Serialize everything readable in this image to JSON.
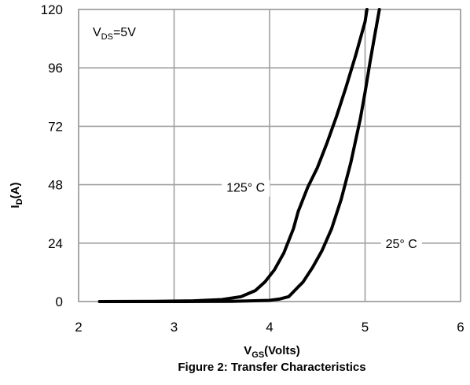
{
  "chart_data": {
    "type": "line",
    "caption": "Figure 2: Transfer Characteristics",
    "xlabel": {
      "main": "V",
      "sub": "GS",
      "rest": "(Volts)"
    },
    "ylabel": {
      "main": "I",
      "sub": "D",
      "rest": "(A)"
    },
    "condition": {
      "main": "V",
      "sub": "DS",
      "rest": "=5V"
    },
    "xlim": [
      2,
      6
    ],
    "ylim": [
      0,
      120
    ],
    "x_ticks": [
      2,
      3,
      4,
      5,
      6
    ],
    "y_ticks": [
      0,
      24,
      48,
      72,
      96,
      120
    ],
    "grid": true,
    "series": [
      {
        "name": "125° C",
        "label_at": [
          3.75,
          47
        ],
        "points": [
          [
            2.22,
            0
          ],
          [
            2.8,
            0.1
          ],
          [
            3.2,
            0.3
          ],
          [
            3.5,
            0.8
          ],
          [
            3.7,
            2
          ],
          [
            3.85,
            4.5
          ],
          [
            3.95,
            8
          ],
          [
            4.05,
            13
          ],
          [
            4.15,
            20
          ],
          [
            4.25,
            30
          ],
          [
            4.3,
            37
          ],
          [
            4.4,
            47
          ],
          [
            4.5,
            55
          ],
          [
            4.6,
            65
          ],
          [
            4.7,
            76
          ],
          [
            4.8,
            88
          ],
          [
            4.9,
            101
          ],
          [
            5.0,
            115
          ],
          [
            5.02,
            120
          ]
        ]
      },
      {
        "name": "25° C",
        "label_at": [
          5.38,
          24
        ],
        "points": [
          [
            2.22,
            0
          ],
          [
            3.1,
            0
          ],
          [
            3.6,
            0.1
          ],
          [
            4.0,
            0.5
          ],
          [
            4.1,
            1
          ],
          [
            4.2,
            2
          ],
          [
            4.25,
            4
          ],
          [
            4.3,
            6
          ],
          [
            4.35,
            8
          ],
          [
            4.45,
            14
          ],
          [
            4.55,
            21
          ],
          [
            4.65,
            30
          ],
          [
            4.75,
            42
          ],
          [
            4.85,
            57
          ],
          [
            4.95,
            75
          ],
          [
            5.0,
            86
          ],
          [
            5.05,
            98
          ],
          [
            5.1,
            109
          ],
          [
            5.15,
            120
          ]
        ]
      }
    ]
  }
}
